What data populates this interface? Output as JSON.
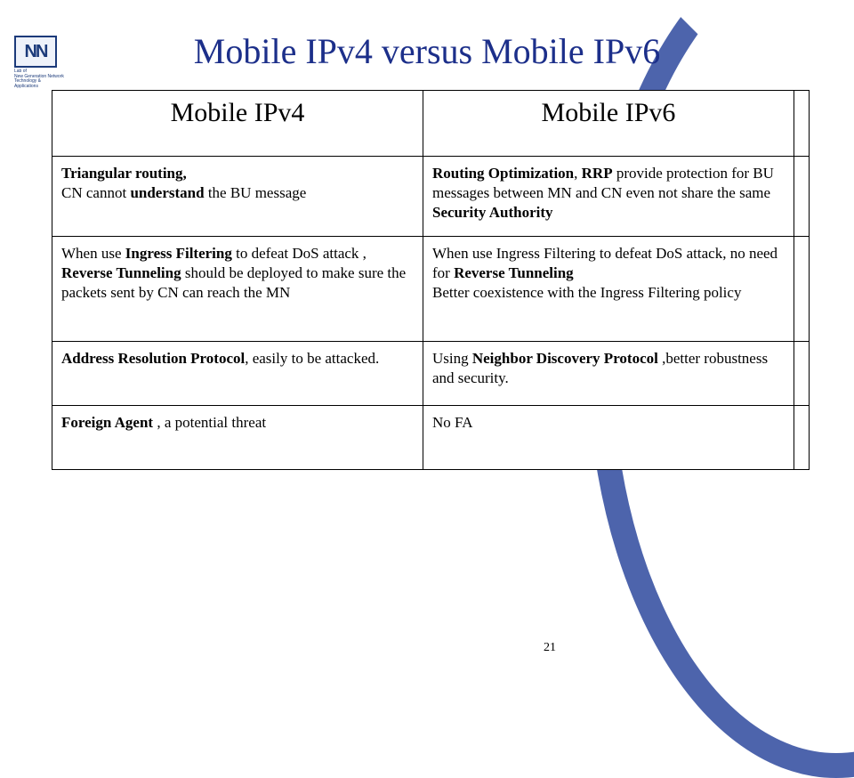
{
  "logo": {
    "initials": "NN",
    "subtext1": "Lab of",
    "subtext2": "New Generation Network",
    "subtext3": "Technology & Applications"
  },
  "title": "Mobile IPv4 versus Mobile IPv6",
  "table": {
    "header": {
      "col1": "Mobile IPv4",
      "col2": "Mobile IPv6"
    },
    "rows": [
      {
        "col1": "<b>Triangular routing,</b><br>CN cannot <b>understand</b> the BU message",
        "col2": "<b>Routing Optimization</b>, <b>RRP</b> provide protection for BU messages between MN and CN even not share the same <b>Security Authority</b>"
      },
      {
        "col1": "When use <b>Ingress Filtering</b> to defeat DoS attack , <b>Reverse Tunneling</b> should be deployed to make sure the packets sent by CN can reach the MN",
        "col2": "When use Ingress Filtering to defeat DoS attack, no need for <b>Reverse Tunneling</b><br>Better coexistence with the Ingress Filtering policy"
      },
      {
        "col1": "<b>Address Resolution Protocol</b>, easily to be attacked.",
        "col2": "Using <b>Neighbor Discovery Protocol</b> ,better robustness and security."
      },
      {
        "col1": "<b>Foreign Agent</b> , a potential threat",
        "col2": "No FA"
      }
    ]
  },
  "page_number": "21",
  "colors": {
    "title": "#1c2f8a",
    "arc": "#2e4a9e",
    "border": "#000000",
    "background": "#ffffff"
  }
}
